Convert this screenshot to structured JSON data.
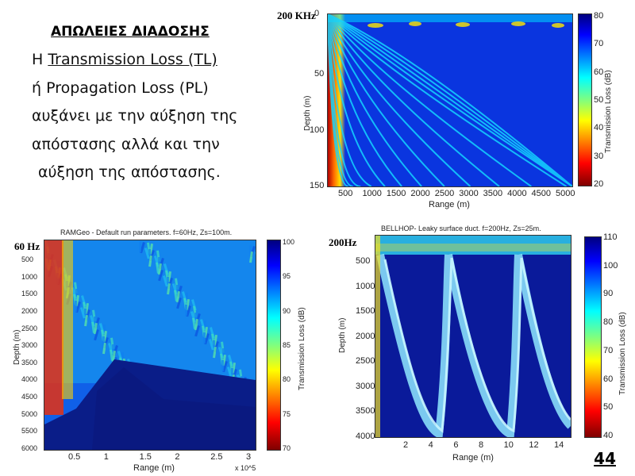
{
  "text": {
    "title": "ΑΠΩΛΕΙΕΣ ΔΙΑΔΟΣΗΣ",
    "line1_prefix": "Η ",
    "line1_underlined": "Transmission Loss (TL)",
    "line2": "ή  Propagation Loss (PL)",
    "line3": "αυξάνει με την αύξηση της",
    "line4": "απόστασης αλλά και την",
    "line5": "αύξηση της απόστασης."
  },
  "page_number": "44",
  "colors": {
    "deep_blue": "#0a2bd8",
    "navy": "#0a1a80",
    "red": "#c81b10",
    "yellow": "#f2e020"
  },
  "chart_data": [
    {
      "type": "heatmap",
      "tag": "200 KHz",
      "title": "",
      "xlabel": "Range (m)",
      "ylabel": "Depth (m)",
      "colorbar_label": "Transmission Loss (dB)",
      "xticks": [
        "500",
        "1000",
        "1500",
        "2000",
        "2500",
        "3000",
        "3500",
        "4000",
        "4500",
        "5000"
      ],
      "yticks": [
        "0",
        "50",
        "100",
        "150"
      ],
      "cbar_ticks": [
        "80",
        "70",
        "60",
        "50",
        "40",
        "30",
        "20"
      ],
      "xlim": [
        0,
        5000
      ],
      "ylim": [
        0,
        150
      ],
      "clim": [
        20,
        80
      ]
    },
    {
      "type": "heatmap",
      "tag": "60 Hz",
      "title": "RAMGeo - Default run parameters. f=60Hz, Zs=100m.",
      "xlabel": "Range (m)",
      "ylabel": "Depth (m)",
      "colorbar_label": "Transmission Loss (dB)",
      "xticks": [
        "0.5",
        "1",
        "1.5",
        "2",
        "2.5",
        "3"
      ],
      "x_multiplier": "x 10^5",
      "yticks": [
        "500",
        "1000",
        "1500",
        "2000",
        "2500",
        "3000",
        "3500",
        "4000",
        "4500",
        "5000",
        "5500",
        "6000"
      ],
      "cbar_ticks": [
        "100",
        "95",
        "90",
        "85",
        "80",
        "75",
        "70"
      ],
      "xlim": [
        0,
        300000
      ],
      "ylim": [
        0,
        6000
      ],
      "clim": [
        70,
        100
      ]
    },
    {
      "type": "heatmap",
      "tag": "200Hz",
      "title": "BELLHOP- Leaky surface duct. f=200Hz, Zs=25m.",
      "xlabel": "Range (m)",
      "ylabel": "Depth (m)",
      "colorbar_label": "Transmission Loss (dB)",
      "xticks": [
        "2",
        "4",
        "6",
        "8",
        "10",
        "12",
        "14"
      ],
      "yticks": [
        "500",
        "1000",
        "1500",
        "2000",
        "2500",
        "3000",
        "3500",
        "4000"
      ],
      "cbar_ticks": [
        "110",
        "100",
        "90",
        "80",
        "70",
        "60",
        "50",
        "40"
      ],
      "xlim": [
        0,
        15
      ],
      "ylim": [
        0,
        4000
      ],
      "clim": [
        40,
        110
      ]
    }
  ]
}
